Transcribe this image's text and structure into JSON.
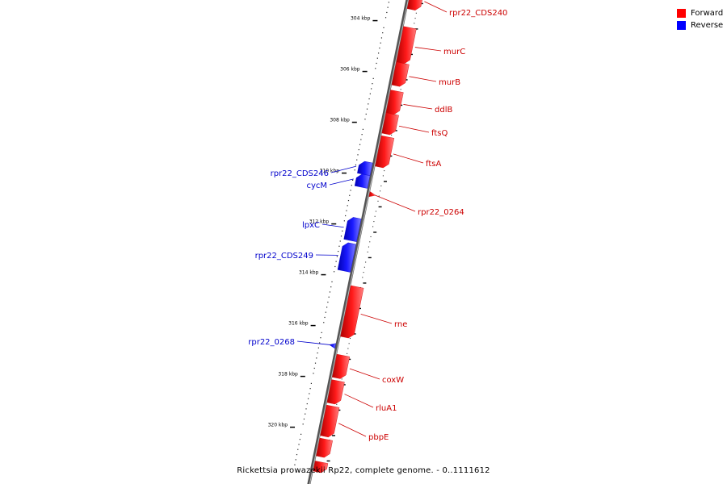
{
  "legend": {
    "forward": {
      "label": "Forward",
      "color": "#ff0000"
    },
    "reverse": {
      "label": "Reverse",
      "color": "#0000ff"
    }
  },
  "caption": "Rickettsia prowazekii Rp22, complete genome. - 0..1111612",
  "chart_data": {
    "type": "genome-map",
    "axis": {
      "unit": "kbp",
      "range_kbp": [
        302.5,
        321.5
      ],
      "tick_labels": [
        "304 kbp",
        "306 kbp",
        "308 kbp",
        "310 kbp",
        "312 kbp",
        "314 kbp",
        "316 kbp",
        "318 kbp",
        "320 kbp"
      ],
      "tick_values": [
        304,
        306,
        308,
        310,
        312,
        314,
        316,
        318,
        320
      ]
    },
    "genes": [
      {
        "name": "rpr22_CDS240",
        "strand": "forward",
        "start": 302.5,
        "end": 303.3
      },
      {
        "name": "murC",
        "strand": "forward",
        "start": 304.0,
        "end": 305.4
      },
      {
        "name": "murB",
        "strand": "forward",
        "start": 305.4,
        "end": 306.3
      },
      {
        "name": "ddlB",
        "strand": "forward",
        "start": 306.5,
        "end": 307.4
      },
      {
        "name": "ftsQ",
        "strand": "forward",
        "start": 307.4,
        "end": 308.2
      },
      {
        "name": "ftsA",
        "strand": "forward",
        "start": 308.3,
        "end": 309.5
      },
      {
        "name": "rpr22_CDS246",
        "strand": "reverse",
        "start": 309.4,
        "end": 309.9
      },
      {
        "name": "cycM",
        "strand": "reverse",
        "start": 309.9,
        "end": 310.4
      },
      {
        "name": "rpr22_0264",
        "strand": "forward",
        "start": 310.5,
        "end": 310.7
      },
      {
        "name": "lpxC",
        "strand": "reverse",
        "start": 311.6,
        "end": 312.5
      },
      {
        "name": "rpr22_CDS249",
        "strand": "reverse",
        "start": 312.6,
        "end": 313.7
      },
      {
        "name": "rne",
        "strand": "forward",
        "start": 314.2,
        "end": 316.2
      },
      {
        "name": "rpr22_0268",
        "strand": "reverse",
        "start": 316.5,
        "end": 316.7
      },
      {
        "name": "coxW",
        "strand": "forward",
        "start": 316.9,
        "end": 317.8
      },
      {
        "name": "rluA1",
        "strand": "forward",
        "start": 317.9,
        "end": 318.8
      },
      {
        "name": "pbpE",
        "strand": "forward",
        "start": 318.9,
        "end": 320.1
      },
      {
        "name": "",
        "strand": "forward",
        "start": 320.2,
        "end": 320.9
      },
      {
        "name": "",
        "strand": "forward",
        "start": 321.1,
        "end": 321.5
      }
    ]
  }
}
